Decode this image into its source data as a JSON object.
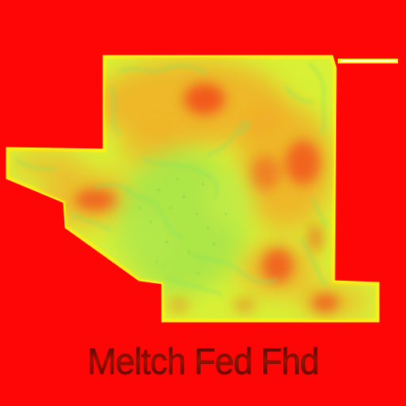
{
  "caption": "Meltch Fed Fhd",
  "colors": {
    "background": "#ff0606",
    "land": "#d8f036",
    "outline": "#f6f21c",
    "hot": "#f2481a",
    "warm": "#f6a024",
    "cool": "#a6e44a",
    "greenLines": "#7fe36a"
  },
  "legend_bar": {
    "visible": true,
    "color": "#ffffff"
  }
}
